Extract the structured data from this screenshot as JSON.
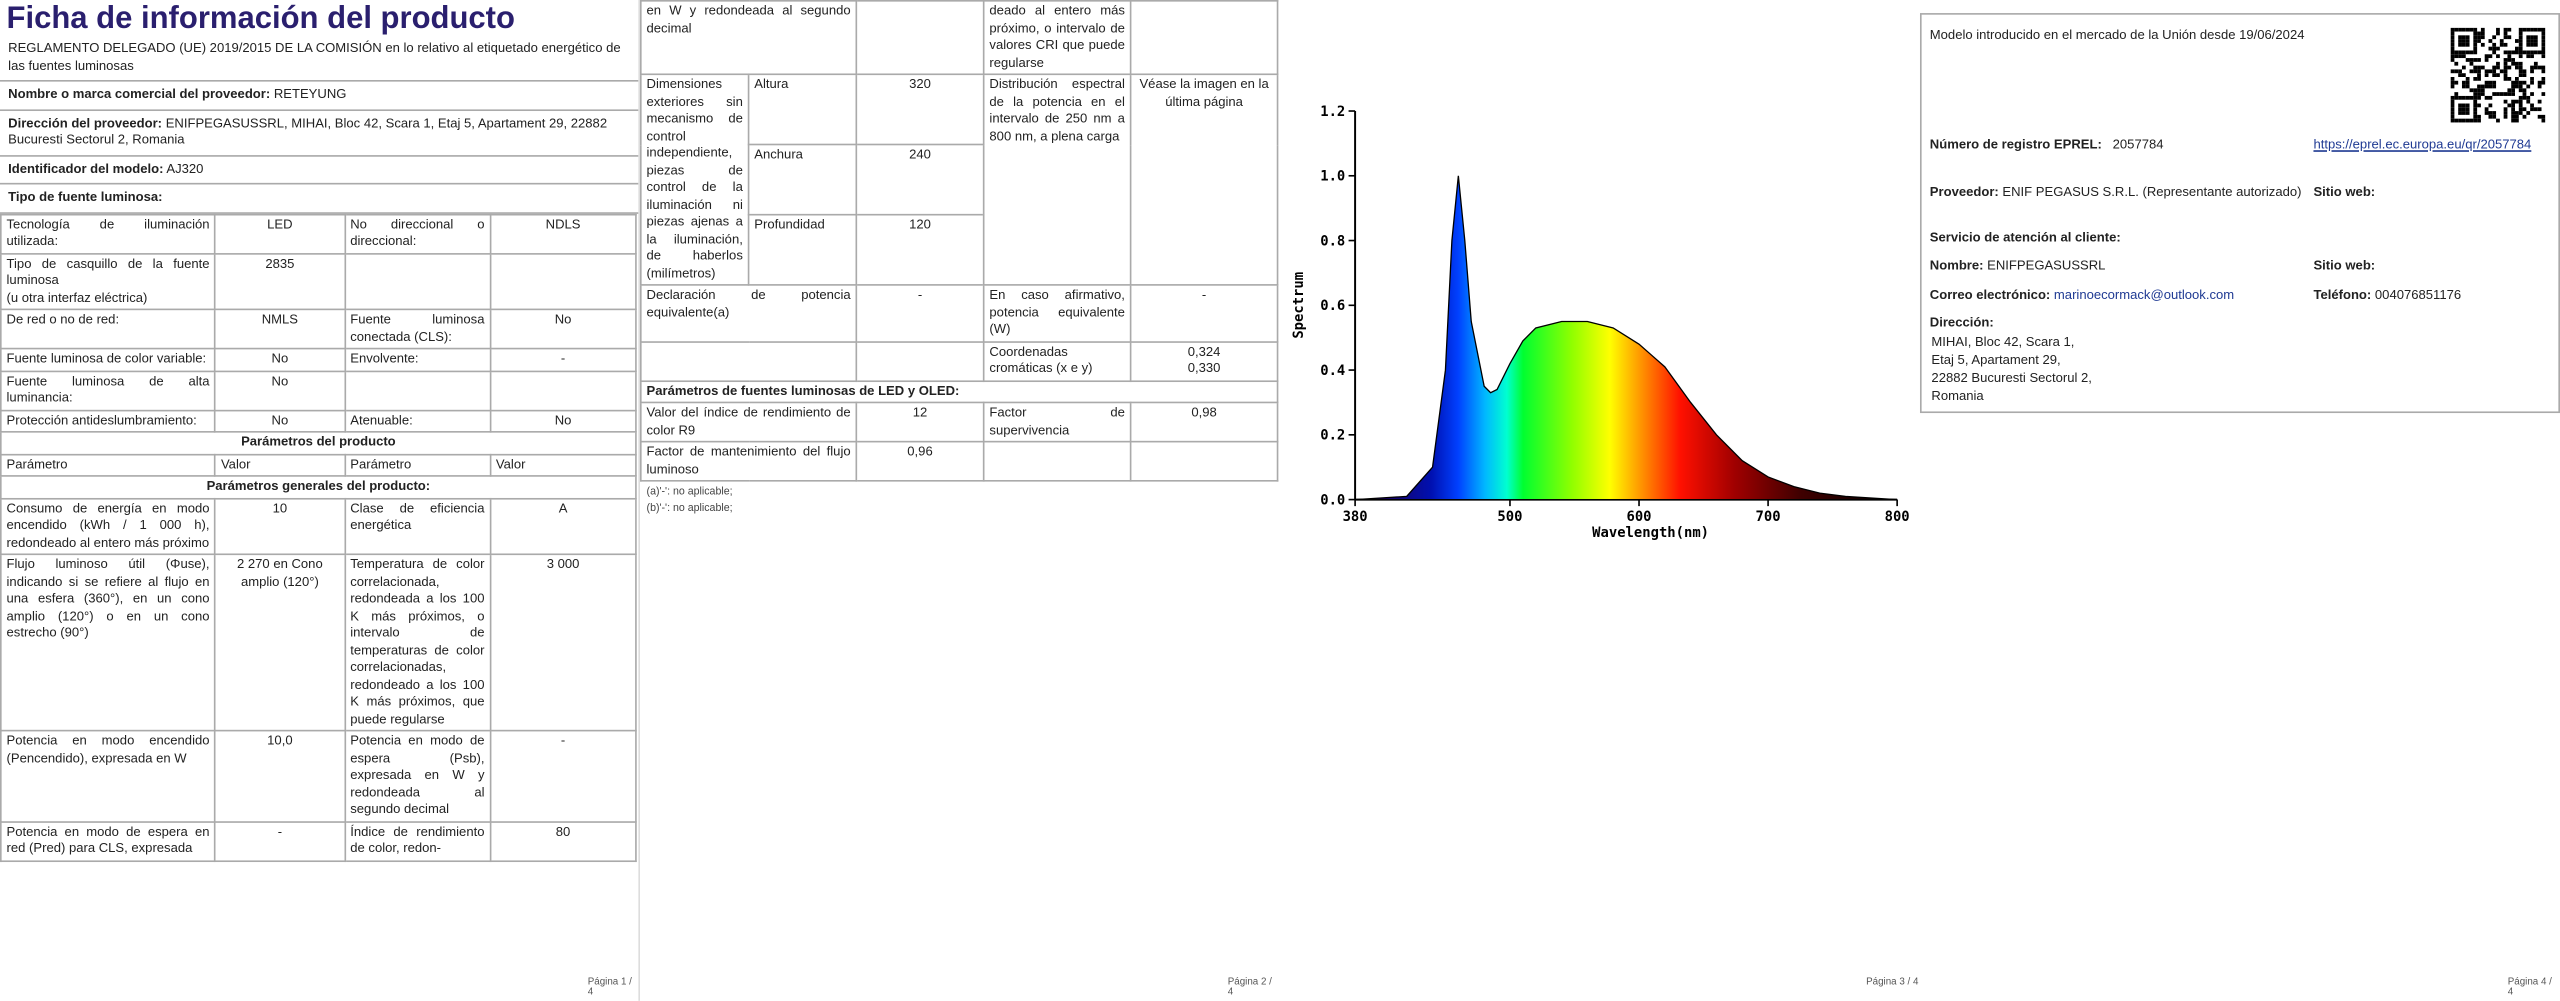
{
  "page1": {
    "title": "Ficha de información del producto",
    "regulation": "REGLAMENTO DELEGADO (UE) 2019/2015 DE LA COMISIÓN en lo relativo al etiquetado energético de las fuentes luminosas",
    "fields": [
      {
        "label": "Nombre o marca comercial del proveedor:",
        "value": "RETEYUNG"
      },
      {
        "label": "Dirección del proveedor:",
        "value": "ENIFPEGASUSSRL, MIHAI, Bloc 42, Scara 1, Etaj 5, Apartament 29, 22882 Bucuresti Sectorul 2, Romania"
      },
      {
        "label": "Identificador del modelo:",
        "value": "AJ320"
      }
    ],
    "light_source_heading": "Tipo de fuente luminosa:",
    "type_rows": [
      [
        "Tecnología de iluminación utilizada:",
        "LED",
        "No direccional o direccional:",
        "NDLS"
      ],
      [
        "Tipo de casquillo de la fuente luminosa\n(u otra interfaz eléctrica)",
        "2835",
        null,
        null
      ],
      [
        "De red o no de red:",
        "NMLS",
        "Fuente luminosa conectada (CLS):",
        "No"
      ],
      [
        "Fuente luminosa de color variable:",
        "No",
        "Envolvente:",
        "-"
      ],
      [
        "Fuente luminosa de alta luminancia:",
        "No",
        null,
        null
      ],
      [
        "Protección antideslumbramiento:",
        "No",
        "Atenuable:",
        "No"
      ]
    ],
    "params_heading": "Parámetros del producto",
    "param_header": [
      "Parámetro",
      "Valor",
      "Parámetro",
      "Valor"
    ],
    "general_heading": "Parámetros generales del producto:",
    "general_rows": [
      [
        "Consumo de energía en modo encendido (kWh / 1 000 h), redondeado al entero más próximo",
        "10",
        "Clase de eficiencia energética",
        "A"
      ],
      [
        "Flujo luminoso útil (Φuse), indicando si se refiere al flujo en una esfera (360°), en un cono amplio (120°) o en un cono estrecho (90°)",
        "2 270 en Cono amplio (120°)",
        "Temperatura de color correlacionada, redondeada a los 100 K más próximos, o intervalo de temperaturas de color correlacionadas, redondeado a los 100 K más próximos, que puede regularse",
        "3 000"
      ],
      [
        "Potencia en modo encendido (Pencendido), expresada en W",
        "10,0",
        "Potencia en modo de espera (Psb), expresada en W y redondeada al segundo decimal",
        "-"
      ],
      [
        "Potencia en modo de espera en red (Pred) para CLS, expresada",
        "-",
        "Índice de rendimiento de color, redon-",
        "80"
      ]
    ],
    "footer": "Página 1 / 4"
  },
  "page2": {
    "continued_row": [
      "en W y redondeada al segundo decimal",
      null,
      "deado al entero más próximo, o intervalo de valores CRI que puede regularse",
      null
    ],
    "dimensions": {
      "label": "Dimensiones exteriores sin mecanismo de control independiente, piezas de control de la iluminación ni piezas ajenas a la iluminación, de haberlos (milímetros)",
      "rows": [
        [
          "Altura",
          "320"
        ],
        [
          "Anchura",
          "240"
        ],
        [
          "Profundidad",
          "120"
        ]
      ],
      "spectral_label": "Distribución espectral de la potencia en el intervalo de 250 nm a 800 nm, a plena carga",
      "spectral_value": "Véase la imagen en la última página"
    },
    "rows": [
      [
        "Declaración de potencia equivalente(a)",
        "-",
        "En caso afirmativo, potencia equivalente (W)",
        "-"
      ],
      [
        null,
        null,
        "Coordenadas cromáticas (x e y)",
        "0,324\n0,330"
      ]
    ],
    "led_heading": "Parámetros de fuentes luminosas de LED y OLED:",
    "led_rows": [
      [
        "Valor del índice de rendimiento de color R9",
        "12",
        "Factor de supervivencia",
        "0,98"
      ],
      [
        "Factor de mantenimiento del flujo luminoso",
        "0,96",
        null,
        null
      ]
    ],
    "notes": [
      "(a)'-': no aplicable;",
      "(b)'-': no aplicable;"
    ],
    "footer": "Página 2 / 4"
  },
  "page3": {
    "chart_data": {
      "type": "area",
      "x_label": "Wavelength(nm)",
      "y_label": "Spectrum",
      "x": [
        380,
        420,
        440,
        450,
        455,
        460,
        465,
        470,
        480,
        485,
        490,
        500,
        510,
        520,
        540,
        560,
        580,
        600,
        620,
        640,
        660,
        680,
        700,
        720,
        740,
        760,
        780,
        800
      ],
      "values": [
        0,
        0.01,
        0.1,
        0.4,
        0.8,
        1.0,
        0.8,
        0.55,
        0.35,
        0.33,
        0.34,
        0.42,
        0.49,
        0.53,
        0.55,
        0.55,
        0.53,
        0.48,
        0.41,
        0.3,
        0.2,
        0.12,
        0.07,
        0.04,
        0.02,
        0.01,
        0.005,
        0
      ],
      "xlim": [
        380,
        800
      ],
      "ylim": [
        0,
        1.2
      ],
      "xticks": [
        380,
        500,
        600,
        700,
        800
      ],
      "yticks": [
        {
          "value": 0,
          "label": "0.0"
        },
        0.2,
        0.4,
        0.6,
        0.8,
        {
          "value": 1,
          "label": "1.0"
        },
        1.2
      ]
    },
    "footer": "Página 3 / 4"
  },
  "page4": {
    "market_date": "Modelo introducido en el mercado de la Unión desde 19/06/2024",
    "eprel_label": "Número de registro EPREL:",
    "eprel_value": "2057784",
    "eprel_link": "https://eprel.ec.europa.eu/qr/2057784",
    "supplier_label": "Proveedor:",
    "supplier_value": "ENIF PEGASUS S.R.L. (Representante autorizado)",
    "website_label": "Sitio web:",
    "service_heading": "Servicio de atención al cliente:",
    "name_label": "Nombre:",
    "name_value": "ENIFPEGASUSSRL",
    "service_website_label": "Sitio web:",
    "email_label": "Correo electrónico:",
    "email_value": "marinoecormack@outlook.com",
    "phone_label": "Teléfono:",
    "phone_value": "004076851176",
    "address_label": "Dirección:",
    "address_value": "MIHAI, Bloc 42, Scara 1,\nEtaj 5, Apartament 29,\n22882 Bucuresti Sectorul 2,\nRomania",
    "footer": "Página 4 / 4"
  }
}
